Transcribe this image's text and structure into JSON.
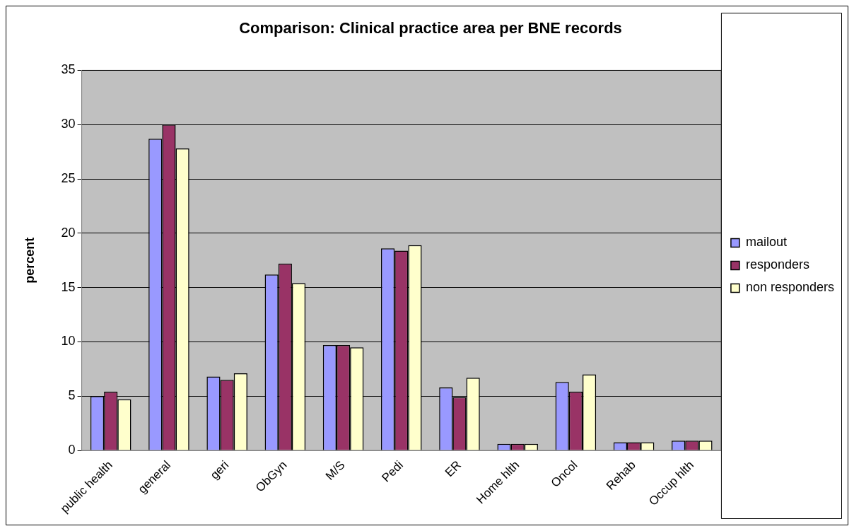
{
  "chart_data": {
    "type": "bar",
    "title": "Comparison: Clinical practice area per BNE records",
    "ylabel": "percent",
    "categories": [
      "public health",
      "general",
      "geri",
      "ObGyn",
      "M/S",
      "Pedi",
      "ER",
      "Home hlth",
      "Oncol",
      "Rehab",
      "Occup hlth"
    ],
    "series": [
      {
        "name": "mailout",
        "color": "#9999ff",
        "values": [
          5.0,
          28.7,
          6.8,
          16.2,
          9.7,
          18.6,
          5.8,
          0.6,
          6.3,
          0.75,
          0.9
        ]
      },
      {
        "name": "responders",
        "color": "#993366",
        "values": [
          5.4,
          30.0,
          6.5,
          17.2,
          9.7,
          18.4,
          4.9,
          0.6,
          5.4,
          0.75,
          0.9
        ]
      },
      {
        "name": "non responders",
        "color": "#ffffcc",
        "values": [
          4.7,
          27.8,
          7.1,
          15.4,
          9.5,
          18.9,
          6.7,
          0.6,
          7.0,
          0.75,
          0.9
        ]
      }
    ],
    "ylim": [
      0,
      35
    ],
    "yticks": [
      0,
      5,
      10,
      15,
      20,
      25,
      30,
      35
    ],
    "grid": "y",
    "legend": "right"
  }
}
